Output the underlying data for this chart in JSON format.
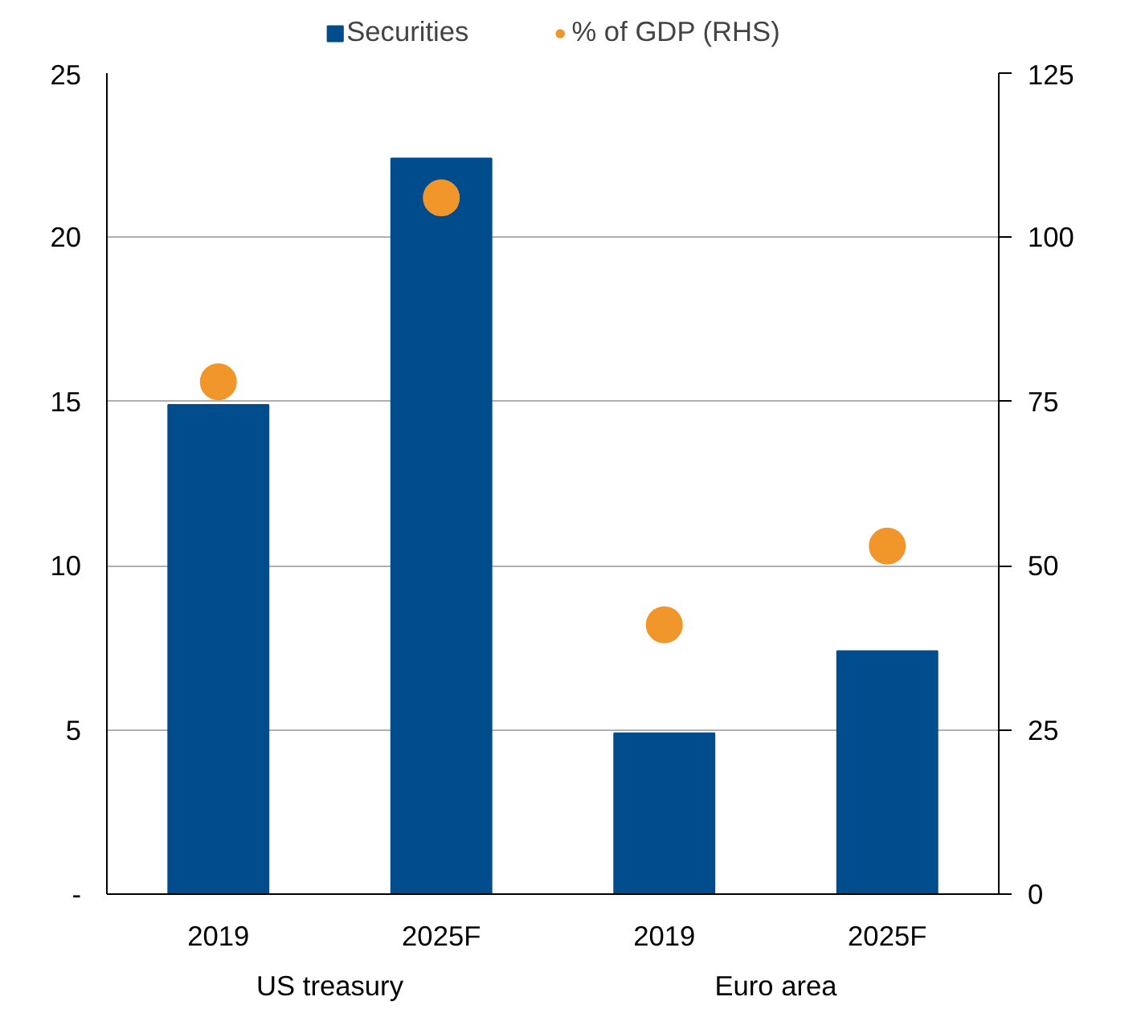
{
  "chart_data": {
    "type": "bar",
    "categories": [
      "2019",
      "2025F",
      "2019",
      "2025F"
    ],
    "series": [
      {
        "name": "Securities",
        "color": "#004c8c",
        "values": [
          14.9,
          22.4,
          4.9,
          7.4
        ]
      },
      {
        "name": "% of GDP (RHS)",
        "type": "scatter",
        "axis": "y2",
        "color": "#f0962a",
        "marker": "circle",
        "values": [
          78,
          106,
          41,
          53
        ]
      }
    ],
    "ylim": [
      0,
      25
    ],
    "yticks": [
      {
        "value": 0,
        "label": "-"
      },
      5,
      10,
      15,
      20,
      25
    ],
    "y2lim": [
      0,
      125
    ],
    "y2ticks": [
      0,
      25,
      50,
      75,
      100,
      125
    ],
    "annotations": [
      "US treasury",
      "Euro area"
    ],
    "grid": "y",
    "legend": "top"
  }
}
